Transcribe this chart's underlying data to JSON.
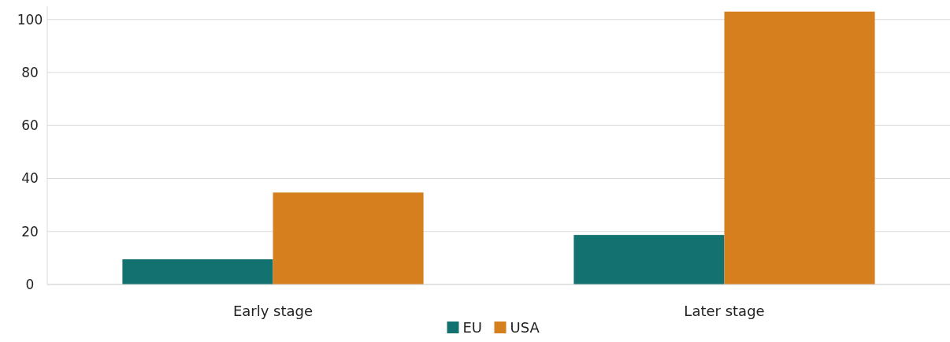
{
  "chart_data": {
    "type": "bar",
    "categories": [
      "Early stage",
      "Later stage"
    ],
    "series": [
      {
        "name": "EU",
        "color": "#137270",
        "values": [
          9.5,
          18.7
        ]
      },
      {
        "name": "USA",
        "color": "#d57f1e",
        "values": [
          34.7,
          103
        ]
      }
    ],
    "ylim": [
      0,
      105
    ],
    "yticks": [
      0,
      20,
      40,
      60,
      80,
      100
    ],
    "grid": "y",
    "legend": "bottom"
  }
}
